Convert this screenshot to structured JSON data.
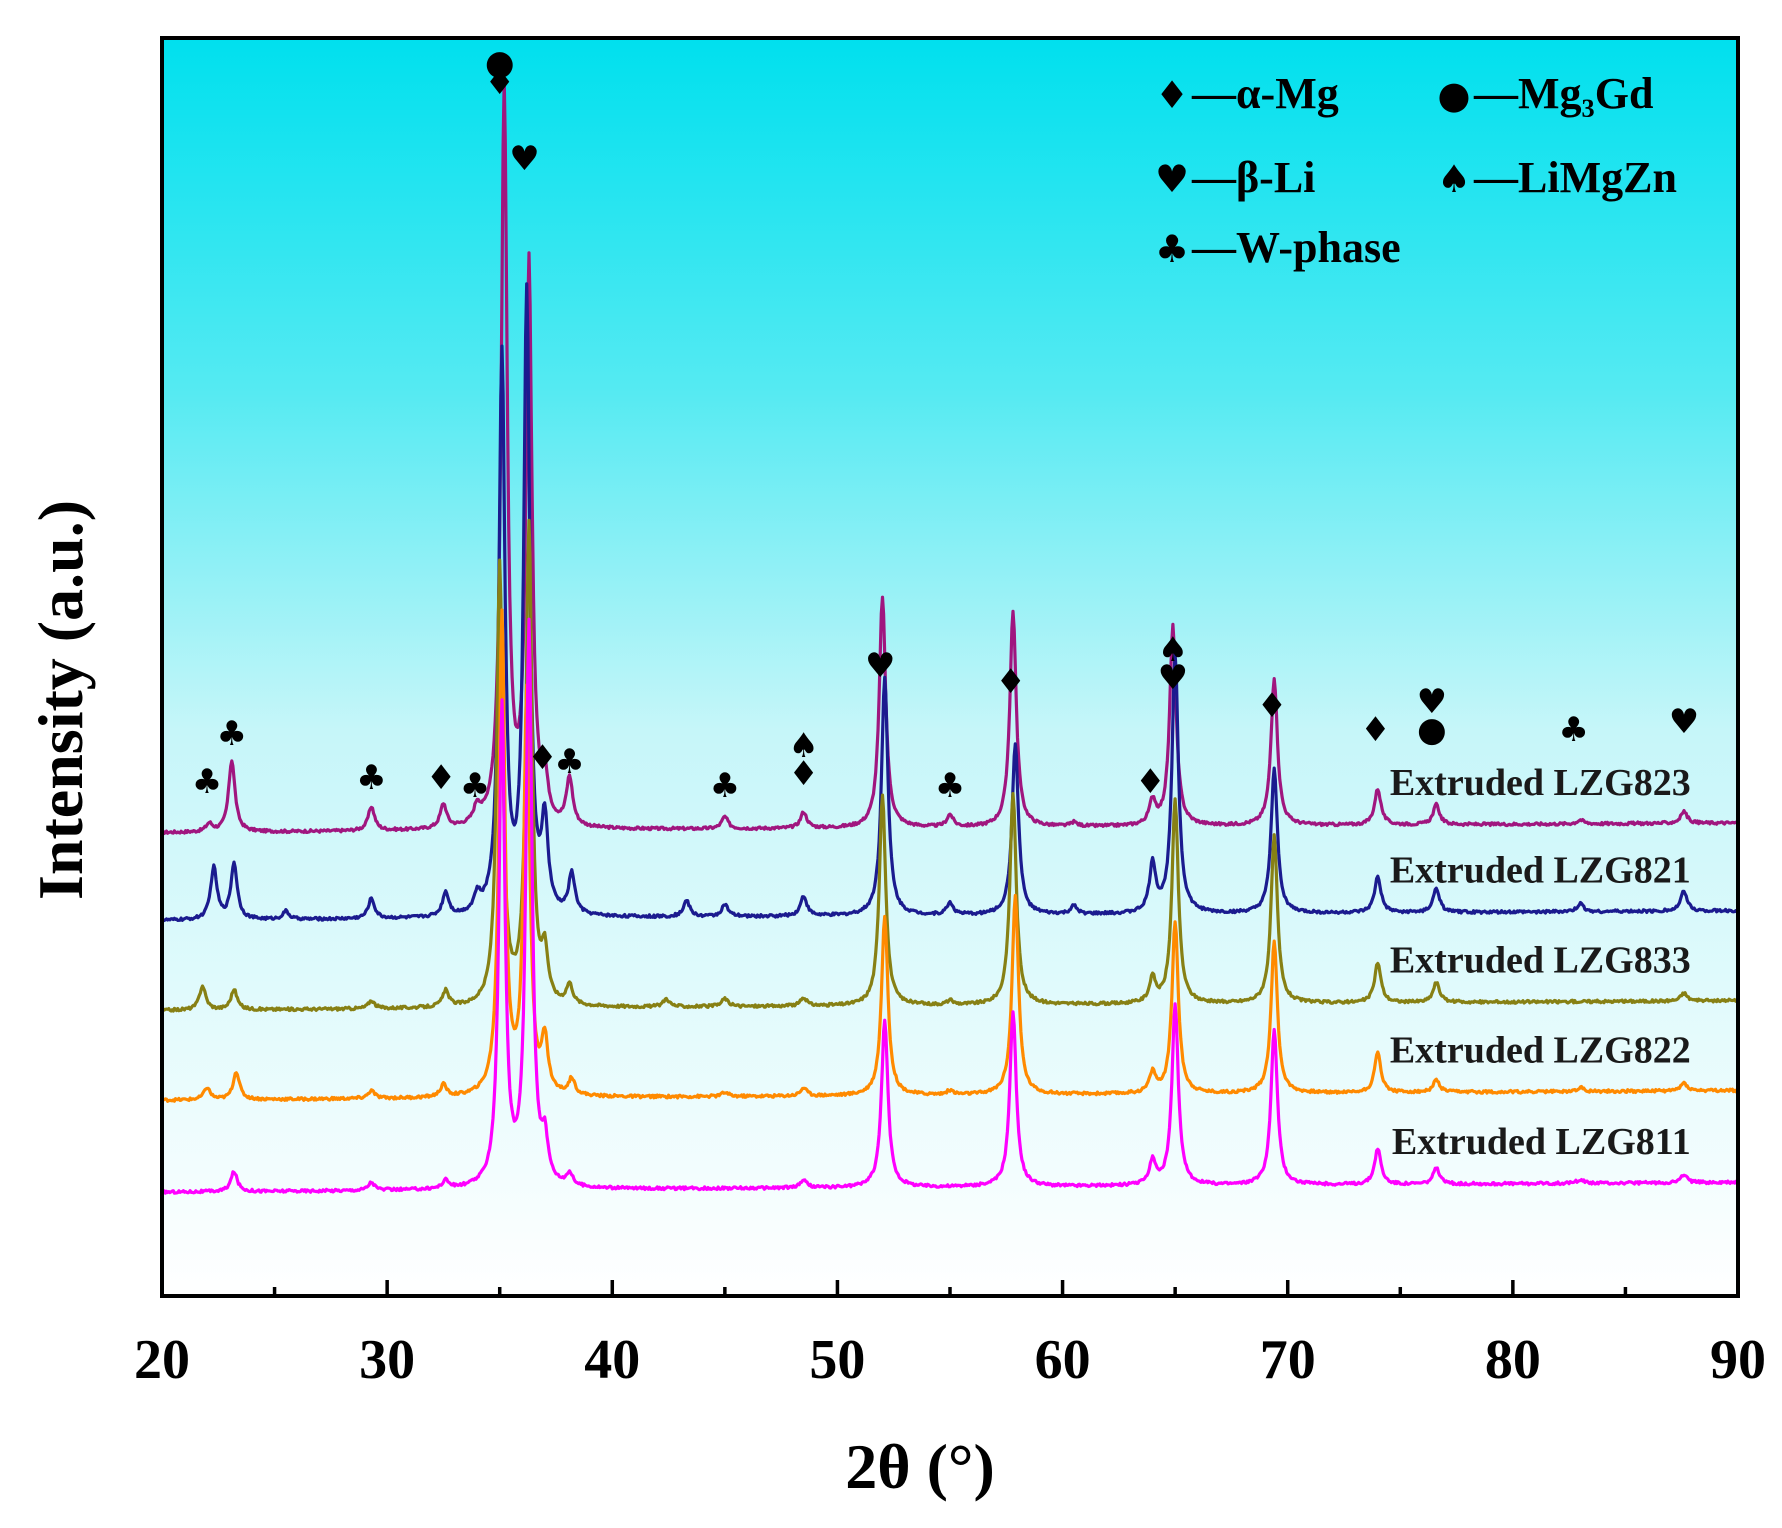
{
  "chart_data": {
    "type": "line",
    "title": "",
    "xlabel": "2θ (°)",
    "ylabel": "Intensity (a.u.)",
    "xlim": [
      20,
      90
    ],
    "xticks": [
      "20",
      "30",
      "40",
      "50",
      "60",
      "70",
      "80",
      "90"
    ],
    "colors": {
      "bg_top": "#00e0ee",
      "bg_bottom": "#ffffff",
      "LZG823": "#a0167f",
      "LZG821": "#1b1b8f",
      "LZG833": "#878014",
      "LZG822": "#ff8a00",
      "LZG811": "#ff00ff"
    },
    "legend": [
      {
        "symbol": "♦",
        "text": "—α-Mg"
      },
      {
        "symbol": "●",
        "text": "—Mg₃Gd"
      },
      {
        "symbol": "♥",
        "text": "—β-Li"
      },
      {
        "symbol": "♠",
        "text": "—LiMgZn"
      },
      {
        "symbol": "♣",
        "text": "—W-phase"
      }
    ],
    "series": [
      {
        "name": "Extruded LZG823",
        "color_key": "LZG823",
        "baseline": 0.61,
        "peaks": [
          [
            22.1,
            0.02
          ],
          [
            23.1,
            0.18
          ],
          [
            29.3,
            0.06
          ],
          [
            32.5,
            0.06
          ],
          [
            34.0,
            0.04
          ],
          [
            35.2,
            1.85
          ],
          [
            36.3,
            1.4
          ],
          [
            37.0,
            0.1
          ],
          [
            38.1,
            0.12
          ],
          [
            45.0,
            0.03
          ],
          [
            48.5,
            0.04
          ],
          [
            52.0,
            0.58
          ],
          [
            55.0,
            0.03
          ],
          [
            57.8,
            0.54
          ],
          [
            60.5,
            0.01
          ],
          [
            64.0,
            0.06
          ],
          [
            64.9,
            0.5
          ],
          [
            69.4,
            0.37
          ],
          [
            74.0,
            0.09
          ],
          [
            76.6,
            0.05
          ],
          [
            83.0,
            0.01
          ],
          [
            87.6,
            0.03
          ]
        ]
      },
      {
        "name": "Extruded LZG821",
        "color_key": "LZG821",
        "baseline": 0.39,
        "peaks": [
          [
            22.3,
            0.13
          ],
          [
            23.2,
            0.14
          ],
          [
            25.5,
            0.02
          ],
          [
            29.3,
            0.05
          ],
          [
            32.6,
            0.06
          ],
          [
            34.0,
            0.04
          ],
          [
            35.1,
            1.4
          ],
          [
            36.2,
            1.55
          ],
          [
            37.0,
            0.22
          ],
          [
            38.2,
            0.1
          ],
          [
            43.3,
            0.04
          ],
          [
            45.0,
            0.03
          ],
          [
            48.5,
            0.05
          ],
          [
            52.1,
            0.6
          ],
          [
            55.0,
            0.03
          ],
          [
            57.9,
            0.43
          ],
          [
            60.5,
            0.02
          ],
          [
            64.0,
            0.12
          ],
          [
            65.0,
            0.65
          ],
          [
            69.4,
            0.36
          ],
          [
            74.0,
            0.09
          ],
          [
            76.6,
            0.06
          ],
          [
            83.0,
            0.02
          ],
          [
            87.6,
            0.05
          ]
        ]
      },
      {
        "name": "Extruded LZG833",
        "color_key": "LZG833",
        "baseline": 0.165,
        "peaks": [
          [
            21.8,
            0.06
          ],
          [
            23.2,
            0.05
          ],
          [
            29.3,
            0.02
          ],
          [
            32.6,
            0.04
          ],
          [
            35.0,
            1.1
          ],
          [
            36.3,
            1.2
          ],
          [
            37.0,
            0.12
          ],
          [
            38.1,
            0.05
          ],
          [
            42.4,
            0.02
          ],
          [
            45.0,
            0.02
          ],
          [
            48.5,
            0.02
          ],
          [
            52.0,
            0.53
          ],
          [
            55.0,
            0.01
          ],
          [
            57.8,
            0.53
          ],
          [
            64.0,
            0.06
          ],
          [
            65.0,
            0.51
          ],
          [
            69.4,
            0.42
          ],
          [
            74.0,
            0.1
          ],
          [
            76.6,
            0.05
          ],
          [
            87.6,
            0.02
          ]
        ]
      },
      {
        "name": "Extruded LZG822",
        "color_key": "LZG822",
        "baseline": -0.06,
        "peaks": [
          [
            22.0,
            0.03
          ],
          [
            23.3,
            0.07
          ],
          [
            29.3,
            0.02
          ],
          [
            32.5,
            0.03
          ],
          [
            35.1,
            1.2
          ],
          [
            36.2,
            1.0
          ],
          [
            37.0,
            0.13
          ],
          [
            38.2,
            0.04
          ],
          [
            45.0,
            0.01
          ],
          [
            48.5,
            0.02
          ],
          [
            52.1,
            0.45
          ],
          [
            55.0,
            0.01
          ],
          [
            57.9,
            0.5
          ],
          [
            64.0,
            0.05
          ],
          [
            65.0,
            0.43
          ],
          [
            69.4,
            0.38
          ],
          [
            74.0,
            0.1
          ],
          [
            76.6,
            0.03
          ],
          [
            83.0,
            0.01
          ],
          [
            87.6,
            0.02
          ]
        ]
      },
      {
        "name": "Extruded LZG811",
        "color_key": "LZG811",
        "baseline": -0.29,
        "peaks": [
          [
            23.2,
            0.05
          ],
          [
            29.3,
            0.02
          ],
          [
            32.6,
            0.02
          ],
          [
            35.1,
            1.2
          ],
          [
            36.3,
            1.4
          ],
          [
            37.0,
            0.1
          ],
          [
            38.1,
            0.03
          ],
          [
            48.5,
            0.02
          ],
          [
            52.1,
            0.42
          ],
          [
            57.8,
            0.44
          ],
          [
            64.0,
            0.06
          ],
          [
            65.0,
            0.45
          ],
          [
            69.4,
            0.39
          ],
          [
            74.0,
            0.09
          ],
          [
            76.6,
            0.04
          ],
          [
            83.0,
            0.01
          ],
          [
            87.6,
            0.02
          ]
        ]
      }
    ],
    "phase_markers": [
      {
        "x": 22.0,
        "y": 0.71,
        "symbol": "♣"
      },
      {
        "x": 23.1,
        "y": 0.83,
        "symbol": "♣"
      },
      {
        "x": 29.3,
        "y": 0.72,
        "symbol": "♣"
      },
      {
        "x": 32.4,
        "y": 0.72,
        "symbol": "♦"
      },
      {
        "x": 33.9,
        "y": 0.7,
        "symbol": "♣"
      },
      {
        "x": 35.0,
        "y": 2.51,
        "symbol": "●"
      },
      {
        "x": 35.0,
        "y": 2.46,
        "symbol": "♦"
      },
      {
        "x": 36.1,
        "y": 2.27,
        "symbol": "♥"
      },
      {
        "x": 36.9,
        "y": 0.77,
        "symbol": "♦"
      },
      {
        "x": 38.1,
        "y": 0.76,
        "symbol": "♣"
      },
      {
        "x": 45.0,
        "y": 0.7,
        "symbol": "♣"
      },
      {
        "x": 48.5,
        "y": 0.8,
        "symbol": "♠"
      },
      {
        "x": 48.5,
        "y": 0.73,
        "symbol": "♦"
      },
      {
        "x": 51.9,
        "y": 1.0,
        "symbol": "♥"
      },
      {
        "x": 55.0,
        "y": 0.7,
        "symbol": "♣"
      },
      {
        "x": 57.7,
        "y": 0.96,
        "symbol": "♦"
      },
      {
        "x": 63.9,
        "y": 0.71,
        "symbol": "♦"
      },
      {
        "x": 64.9,
        "y": 1.04,
        "symbol": "♠"
      },
      {
        "x": 64.9,
        "y": 0.97,
        "symbol": "♥"
      },
      {
        "x": 69.3,
        "y": 0.9,
        "symbol": "♦"
      },
      {
        "x": 73.9,
        "y": 0.84,
        "symbol": "♦"
      },
      {
        "x": 76.4,
        "y": 0.91,
        "symbol": "♥"
      },
      {
        "x": 76.4,
        "y": 0.84,
        "symbol": "●"
      },
      {
        "x": 82.7,
        "y": 0.84,
        "symbol": "♣"
      },
      {
        "x": 87.6,
        "y": 0.86,
        "symbol": "♥"
      }
    ]
  }
}
